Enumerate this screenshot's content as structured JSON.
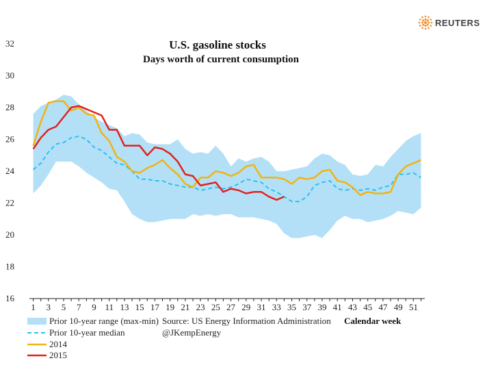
{
  "brand": {
    "name": "REUTERS",
    "logo_color": "#f28c28"
  },
  "chart_data": {
    "type": "line",
    "title": "U.S. gasoline stocks",
    "subtitle": "Days worth of current consumption",
    "xlabel": "Calendar week",
    "ylim": [
      16,
      32
    ],
    "yticks": [
      16,
      18,
      20,
      22,
      24,
      26,
      28,
      30,
      32
    ],
    "xlim": [
      0.5,
      52.5
    ],
    "xticks": [
      1,
      3,
      5,
      7,
      9,
      11,
      13,
      15,
      17,
      19,
      21,
      23,
      25,
      27,
      29,
      31,
      33,
      35,
      37,
      39,
      41,
      43,
      45,
      47,
      49,
      51
    ],
    "weeks": [
      1,
      2,
      3,
      4,
      5,
      6,
      7,
      8,
      9,
      10,
      11,
      12,
      13,
      14,
      15,
      16,
      17,
      18,
      19,
      20,
      21,
      22,
      23,
      24,
      25,
      26,
      27,
      28,
      29,
      30,
      31,
      32,
      33,
      34,
      35,
      36,
      37,
      38,
      39,
      40,
      41,
      42,
      43,
      44,
      45,
      46,
      47,
      48,
      49,
      50,
      51,
      52
    ],
    "range": {
      "name": "Prior 10-year range (max-min)",
      "color": "#b3e0f7",
      "max": [
        27.6,
        28.1,
        28.3,
        28.5,
        28.8,
        28.7,
        28.2,
        27.8,
        27.4,
        27.1,
        26.9,
        26.7,
        26.2,
        26.4,
        26.3,
        25.8,
        25.7,
        25.7,
        25.7,
        26.0,
        25.4,
        25.1,
        25.2,
        25.1,
        25.6,
        25.1,
        24.3,
        24.8,
        24.6,
        24.8,
        24.9,
        24.6,
        24.0,
        24.0,
        24.1,
        24.2,
        24.3,
        24.8,
        25.1,
        25.0,
        24.6,
        24.4,
        23.8,
        23.7,
        23.8,
        24.4,
        24.3,
        24.9,
        25.4,
        25.9,
        26.2,
        26.4
      ],
      "min": [
        22.6,
        23.1,
        23.8,
        24.6,
        24.6,
        24.6,
        24.3,
        23.9,
        23.6,
        23.3,
        22.9,
        22.8,
        22.1,
        21.3,
        21.0,
        20.8,
        20.8,
        20.9,
        21.0,
        21.0,
        21.0,
        21.3,
        21.2,
        21.3,
        21.2,
        21.3,
        21.3,
        21.1,
        21.1,
        21.1,
        21.0,
        20.9,
        20.7,
        20.1,
        19.8,
        19.8,
        19.9,
        20.0,
        19.8,
        20.3,
        20.9,
        21.2,
        21.0,
        21.0,
        20.8,
        20.9,
        21.0,
        21.2,
        21.5,
        21.4,
        21.3,
        21.7
      ]
    },
    "series": [
      {
        "name": "Prior 10-year median",
        "color": "#29c2f0",
        "dashed": true,
        "values": [
          24.1,
          24.5,
          25.2,
          25.7,
          25.8,
          26.1,
          26.2,
          26.0,
          25.5,
          25.3,
          24.9,
          24.5,
          24.4,
          24.0,
          23.5,
          23.5,
          23.4,
          23.4,
          23.2,
          23.1,
          23.0,
          23.0,
          22.8,
          22.9,
          23.0,
          22.9,
          23.0,
          23.2,
          23.5,
          23.4,
          23.3,
          22.9,
          22.7,
          22.4,
          22.1,
          22.1,
          22.4,
          23.1,
          23.3,
          23.4,
          22.9,
          22.8,
          22.9,
          22.8,
          22.9,
          22.8,
          23.0,
          23.1,
          23.8,
          23.8,
          23.9,
          23.6
        ]
      },
      {
        "name": "2014",
        "color": "#f2b311",
        "dashed": false,
        "values": [
          25.6,
          27.1,
          28.3,
          28.4,
          28.4,
          27.8,
          28.0,
          27.6,
          27.5,
          26.4,
          25.9,
          24.9,
          24.6,
          24.0,
          23.9,
          24.2,
          24.4,
          24.7,
          24.2,
          23.8,
          23.2,
          23.0,
          23.6,
          23.6,
          24.0,
          23.9,
          23.7,
          23.9,
          24.3,
          24.4,
          23.6,
          23.6,
          23.6,
          23.5,
          23.2,
          23.6,
          23.5,
          23.6,
          24.0,
          24.1,
          23.4,
          23.3,
          23.0,
          22.5,
          22.7,
          22.6,
          22.6,
          22.7,
          23.8,
          24.3,
          24.5,
          24.7
        ]
      },
      {
        "name": "2015",
        "color": "#e2211c",
        "dashed": false,
        "values": [
          25.4,
          26.1,
          26.6,
          26.8,
          27.4,
          28.0,
          28.1,
          27.9,
          27.7,
          27.5,
          26.6,
          26.6,
          25.6,
          25.6,
          25.6,
          25.0,
          25.5,
          25.4,
          25.1,
          24.6,
          23.8,
          23.7,
          23.1,
          23.2,
          23.3,
          22.7,
          22.9,
          22.8,
          22.6,
          22.7,
          22.7,
          22.4,
          22.2,
          22.4
        ]
      }
    ],
    "source": "Source: US Energy Information Administration",
    "credit": "@JKempEnergy",
    "legend_position": "bottom-left"
  }
}
